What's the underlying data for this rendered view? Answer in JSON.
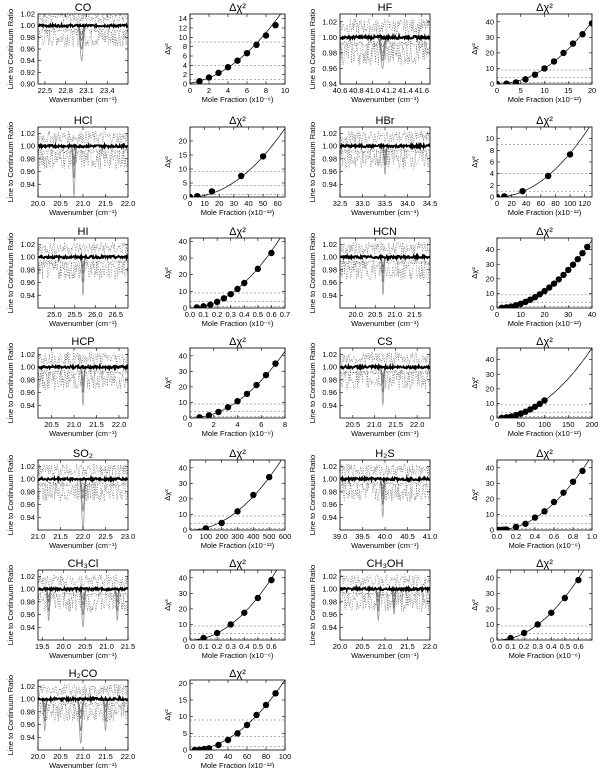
{
  "figure": {
    "spectrum_ylabel": "Line to Continuum Ratio",
    "spectrum_xlabel": "Wavenumber (cm⁻¹)",
    "chi_title": "Δχ²",
    "chi_ylabel": "Δχ²"
  },
  "chart_data": [
    {
      "type": "line",
      "title": "CO",
      "xlim": [
        22.4,
        23.7
      ],
      "ylim": [
        0.9,
        1.02
      ],
      "xticks": [
        22.5,
        22.8,
        23.1,
        23.4
      ],
      "yticks": [
        0.9,
        0.92,
        0.94,
        0.96,
        0.98,
        1.0,
        1.02
      ],
      "lines": [
        {
          "x0": 23.03,
          "w": 0.03,
          "depths": [
            0.06,
            0.04,
            0.025,
            0.015
          ]
        }
      ]
    },
    {
      "type": "scatter",
      "title": "Δχ²",
      "xlabel": "Mole Fraction (x10⁻⁶)",
      "ylabel": "Δχ²",
      "xlim": [
        0,
        10
      ],
      "ylim": [
        0,
        15
      ],
      "xticks": [
        0,
        2,
        4,
        6,
        8,
        10
      ],
      "yticks": [
        0,
        2,
        4,
        6,
        8,
        10,
        12,
        14
      ],
      "x": [
        1,
        2,
        3,
        4,
        5,
        6,
        7,
        8,
        9
      ],
      "y": [
        0.6,
        1.4,
        2.4,
        3.6,
        5.0,
        6.6,
        8.4,
        10.4,
        12.6
      ],
      "curve": {
        "k": 0.13,
        "x0": -1.2
      }
    },
    {
      "type": "line",
      "title": "HF",
      "xlim": [
        40.6,
        41.7
      ],
      "ylim": [
        0.94,
        1.03
      ],
      "xticks": [
        40.6,
        40.8,
        41.0,
        41.2,
        41.4,
        41.6
      ],
      "yticks": [
        0.94,
        0.96,
        0.98,
        1.0,
        1.02
      ],
      "lines": [
        {
          "x0": 41.12,
          "w": 0.03,
          "depths": [
            0.04,
            0.03,
            0.02,
            0.012
          ]
        }
      ]
    },
    {
      "type": "scatter",
      "title": "Δχ²",
      "xlabel": "Mole Fraction (x10⁻¹²)",
      "ylabel": "Δχ²",
      "xlim": [
        0,
        20
      ],
      "ylim": [
        0,
        45
      ],
      "xticks": [
        0,
        5,
        10,
        15,
        20
      ],
      "yticks": [
        0,
        10,
        20,
        30,
        40
      ],
      "x": [
        0,
        2,
        4,
        6,
        8,
        10,
        12,
        14,
        16,
        18,
        20
      ],
      "y": [
        0,
        0.2,
        1,
        3,
        6,
        10,
        14.5,
        20,
        26,
        32,
        39
      ],
      "curve": {
        "k": 0.1,
        "x0": 0
      }
    },
    {
      "type": "line",
      "title": "HCl",
      "xlim": [
        20,
        22
      ],
      "ylim": [
        0.92,
        1.03
      ],
      "xticks": [
        20.0,
        20.5,
        21.0,
        21.5,
        22.0
      ],
      "yticks": [
        0.94,
        0.96,
        0.98,
        1.0,
        1.02
      ],
      "lines": [
        {
          "x0": 20.8,
          "w": 0.03,
          "depths": [
            0.08,
            0.05,
            0.03,
            0.02
          ]
        }
      ]
    },
    {
      "type": "scatter",
      "title": "Δχ²",
      "xlabel": "Mole Fraction (x10⁻¹²)",
      "ylabel": "Δχ²",
      "xlim": [
        0,
        65
      ],
      "ylim": [
        0,
        25
      ],
      "xticks": [
        0,
        10,
        20,
        30,
        40,
        50,
        60
      ],
      "yticks": [
        0,
        5,
        10,
        15,
        20
      ],
      "x": [
        0,
        5,
        15,
        35,
        50
      ],
      "y": [
        0,
        0.3,
        2,
        7.5,
        14.5
      ],
      "curve": {
        "k": 0.0058,
        "x0": 0
      }
    },
    {
      "type": "line",
      "title": "HBr",
      "xlim": [
        32.5,
        34.5
      ],
      "ylim": [
        0.92,
        1.03
      ],
      "xticks": [
        32.5,
        33.0,
        33.5,
        34.0,
        34.5
      ],
      "yticks": [
        0.94,
        0.96,
        0.98,
        1.0,
        1.02
      ],
      "lines": [
        {
          "x0": 33.5,
          "w": 0.03,
          "depths": [
            0.045,
            0.03,
            0.02,
            0.01
          ]
        }
      ]
    },
    {
      "type": "scatter",
      "title": "Δχ²",
      "xlabel": "Mole Fraction (x10⁻¹²)",
      "ylabel": "Δχ²",
      "xlim": [
        0,
        130
      ],
      "ylim": [
        0,
        12
      ],
      "xticks": [
        0,
        20,
        40,
        60,
        80,
        100,
        120
      ],
      "yticks": [
        0,
        2,
        4,
        6,
        8,
        10
      ],
      "x": [
        0,
        10,
        35,
        70,
        100
      ],
      "y": [
        0,
        0.1,
        1,
        3.6,
        7.3
      ],
      "curve": {
        "k": 0.00075,
        "x0": 0
      }
    },
    {
      "type": "line",
      "title": "HI",
      "xlim": [
        24.6,
        26.8
      ],
      "ylim": [
        0.92,
        1.03
      ],
      "xticks": [
        25.0,
        25.5,
        26.0,
        26.5
      ],
      "yticks": [
        0.94,
        0.96,
        0.98,
        1.0,
        1.02
      ],
      "lines": [
        {
          "x0": 25.7,
          "w": 0.03,
          "depths": [
            0.06,
            0.04,
            0.025,
            0.015
          ]
        }
      ]
    },
    {
      "type": "scatter",
      "title": "Δχ²",
      "xlabel": "Mole Fraction (x10⁻⁶)",
      "ylabel": "Δχ²",
      "xlim": [
        0,
        0.7
      ],
      "ylim": [
        0,
        42
      ],
      "xticks": [
        0.0,
        0.1,
        0.2,
        0.3,
        0.4,
        0.5,
        0.6,
        0.7
      ],
      "yticks": [
        0,
        10,
        20,
        30,
        40
      ],
      "x": [
        0.05,
        0.1,
        0.15,
        0.2,
        0.25,
        0.3,
        0.35,
        0.4,
        0.5,
        0.6
      ],
      "y": [
        0.3,
        1,
        2,
        3.7,
        5.8,
        8.3,
        11.4,
        15,
        23.5,
        33
      ],
      "curve": {
        "k": 95,
        "x0": 0
      }
    },
    {
      "type": "line",
      "title": "HCN",
      "xlim": [
        19.6,
        21.9
      ],
      "ylim": [
        0.92,
        1.03
      ],
      "xticks": [
        20.0,
        20.5,
        21.0,
        21.5
      ],
      "yticks": [
        0.94,
        0.96,
        0.98,
        1.0,
        1.02
      ],
      "lines": [
        {
          "x0": 20.7,
          "w": 0.03,
          "depths": [
            0.06,
            0.04,
            0.025,
            0.015
          ]
        }
      ]
    },
    {
      "type": "scatter",
      "title": "Δχ²",
      "xlabel": "Mole Fraction (x10⁻¹²)",
      "ylabel": "Δχ²",
      "xlim": [
        0,
        40
      ],
      "ylim": [
        0,
        48
      ],
      "xticks": [
        0,
        10,
        20,
        30,
        40
      ],
      "yticks": [
        0,
        10,
        20,
        30,
        40
      ],
      "x": [
        2,
        4,
        6,
        8,
        10,
        12,
        14,
        16,
        18,
        20,
        22,
        24,
        26,
        28,
        30,
        32,
        34,
        36,
        38
      ],
      "y": [
        0.1,
        0.5,
        1,
        1.8,
        2.9,
        4.2,
        5.7,
        7.4,
        9.4,
        11.6,
        14,
        16.7,
        19.6,
        22.7,
        26.1,
        29.7,
        33.5,
        37.6,
        41.9
      ],
      "curve": {
        "k": 0.029,
        "x0": 0
      }
    },
    {
      "type": "line",
      "title": "HCP",
      "xlim": [
        20.2,
        22.2
      ],
      "ylim": [
        0.92,
        1.03
      ],
      "xticks": [
        20.5,
        21.0,
        21.5,
        22.0
      ],
      "yticks": [
        0.94,
        0.96,
        0.98,
        1.0,
        1.02
      ],
      "lines": [
        {
          "x0": 21.2,
          "w": 0.03,
          "depths": [
            0.06,
            0.04,
            0.03,
            0.02
          ]
        }
      ]
    },
    {
      "type": "scatter",
      "title": "Δχ²",
      "xlabel": "Mole Fraction (x10⁻⁶)",
      "ylabel": "Δχ²",
      "xlim": [
        0,
        8
      ],
      "ylim": [
        0,
        45
      ],
      "xticks": [
        0,
        2,
        4,
        6,
        8
      ],
      "yticks": [
        0,
        10,
        20,
        30,
        40
      ],
      "x": [
        0.8,
        1.6,
        2.4,
        3.2,
        4.0,
        4.8,
        5.6,
        6.4,
        7.2
      ],
      "y": [
        0.4,
        1.7,
        3.9,
        6.9,
        10.8,
        15.5,
        21.2,
        27.6,
        35
      ],
      "curve": {
        "k": 0.67,
        "x0": 0
      }
    },
    {
      "type": "line",
      "title": "CS",
      "xlim": [
        20.2,
        22.3
      ],
      "ylim": [
        0.92,
        1.03
      ],
      "xticks": [
        20.5,
        21.0,
        21.5,
        22.0
      ],
      "yticks": [
        0.94,
        0.96,
        0.98,
        1.0,
        1.02
      ],
      "lines": [
        {
          "x0": 21.2,
          "w": 0.03,
          "depths": [
            0.06,
            0.04,
            0.025,
            0.015
          ]
        }
      ]
    },
    {
      "type": "scatter",
      "title": "Δχ²",
      "xlabel": "Mole Fraction (x10⁻¹²)",
      "ylabel": "Δχ²",
      "xlim": [
        0,
        200
      ],
      "ylim": [
        0,
        48
      ],
      "xticks": [
        0,
        50,
        100,
        150,
        200
      ],
      "yticks": [
        0,
        10,
        20,
        30,
        40
      ],
      "x": [
        10,
        20,
        30,
        40,
        50,
        60,
        70,
        80,
        90,
        100
      ],
      "y": [
        0.1,
        0.5,
        1.1,
        1.9,
        3,
        4.3,
        5.9,
        7.7,
        9.7,
        12
      ],
      "curve": {
        "k": 0.0012,
        "x0": 0
      }
    },
    {
      "type": "line",
      "title": "SO₂",
      "xlim": [
        21.0,
        23.0
      ],
      "ylim": [
        0.92,
        1.03
      ],
      "xticks": [
        21.0,
        21.5,
        22.0,
        22.5,
        23.0
      ],
      "yticks": [
        0.94,
        0.96,
        0.98,
        1.0,
        1.02
      ],
      "lines": [
        {
          "x0": 22.0,
          "w": 0.04,
          "depths": [
            0.08,
            0.05,
            0.03,
            0.02
          ]
        }
      ]
    },
    {
      "type": "scatter",
      "title": "Δχ²",
      "xlabel": "Mole Fraction (x10⁻¹²)",
      "ylabel": "Δχ²",
      "xlim": [
        0,
        600
      ],
      "ylim": [
        0,
        45
      ],
      "xticks": [
        0,
        100,
        200,
        300,
        400,
        500,
        600
      ],
      "yticks": [
        0,
        10,
        20,
        30,
        40
      ],
      "x": [
        100,
        200,
        300,
        400,
        500
      ],
      "y": [
        1,
        4.5,
        12,
        22.5,
        34
      ],
      "curve": {
        "k": 0.000135,
        "x0": 0
      }
    },
    {
      "type": "line",
      "title": "H₂S",
      "xlim": [
        39.0,
        41.0
      ],
      "ylim": [
        0.92,
        1.03
      ],
      "xticks": [
        39.0,
        39.5,
        40.0,
        40.5,
        41.0
      ],
      "yticks": [
        0.94,
        0.96,
        0.98,
        1.0,
        1.02
      ],
      "lines": [
        {
          "x0": 39.95,
          "w": 0.03,
          "depths": [
            0.06,
            0.04,
            0.025,
            0.015
          ]
        }
      ]
    },
    {
      "type": "scatter",
      "title": "Δχ²",
      "xlabel": "Mole Fraction (x10⁻⁶)",
      "ylabel": "Δχ²",
      "xlim": [
        0,
        1.0
      ],
      "ylim": [
        0,
        45
      ],
      "xticks": [
        0.0,
        0.2,
        0.4,
        0.6,
        0.8,
        1.0
      ],
      "yticks": [
        0,
        10,
        20,
        30,
        40
      ],
      "x": [
        0.02,
        0.04,
        0.06,
        0.08,
        0.1,
        0.2,
        0.3,
        0.4,
        0.5,
        0.6,
        0.7,
        0.8,
        0.9
      ],
      "y": [
        0,
        0,
        0.1,
        0.2,
        0.3,
        2,
        4,
        8,
        12,
        18,
        24,
        31,
        38
      ],
      "curve": {
        "k": 48,
        "x0": 0
      }
    },
    {
      "type": "line",
      "title": "CH₃Cl",
      "xlim": [
        19.4,
        21.5
      ],
      "ylim": [
        0.92,
        1.03
      ],
      "xticks": [
        19.5,
        20.0,
        20.5,
        21.0,
        21.5
      ],
      "yticks": [
        0.94,
        0.96,
        0.98,
        1.0,
        1.02
      ],
      "lines": [
        {
          "x0": 19.65,
          "w": 0.03,
          "depths": [
            0.05,
            0.035,
            0.02,
            0.012
          ]
        },
        {
          "x0": 20.45,
          "w": 0.04,
          "depths": [
            0.06,
            0.04,
            0.025,
            0.015
          ]
        },
        {
          "x0": 21.25,
          "w": 0.03,
          "depths": [
            0.05,
            0.035,
            0.02,
            0.012
          ]
        }
      ]
    },
    {
      "type": "scatter",
      "title": "Δχ²",
      "xlabel": "Mole Fraction (x10⁻⁶)",
      "ylabel": "Δχ²",
      "xlim": [
        0,
        0.7
      ],
      "ylim": [
        0,
        45
      ],
      "xticks": [
        0.0,
        0.1,
        0.2,
        0.3,
        0.4,
        0.5,
        0.6
      ],
      "yticks": [
        0,
        10,
        20,
        30,
        40
      ],
      "x": [
        0.1,
        0.2,
        0.3,
        0.4,
        0.5,
        0.6
      ],
      "y": [
        1.2,
        4.5,
        10,
        17.5,
        27,
        38.5
      ],
      "curve": {
        "k": 110,
        "x0": 0
      }
    },
    {
      "type": "line",
      "title": "CH₃OH",
      "xlim": [
        20.0,
        22.0
      ],
      "ylim": [
        0.92,
        1.03
      ],
      "xticks": [
        20.0,
        20.5,
        21.0,
        21.5,
        22.0
      ],
      "yticks": [
        0.94,
        0.96,
        0.98,
        1.0,
        1.02
      ],
      "lines": [
        {
          "x0": 20.85,
          "w": 0.03,
          "depths": [
            0.05,
            0.035,
            0.02,
            0.012
          ]
        },
        {
          "x0": 21.2,
          "w": 0.03,
          "depths": [
            0.04,
            0.03,
            0.02,
            0.01
          ]
        }
      ]
    },
    {
      "type": "scatter",
      "title": "Δχ²",
      "xlabel": "Mole Fraction (x10⁻⁶)",
      "ylabel": "Δχ²",
      "xlim": [
        0,
        0.7
      ],
      "ylim": [
        0,
        45
      ],
      "xticks": [
        0.0,
        0.1,
        0.2,
        0.3,
        0.4,
        0.5,
        0.6
      ],
      "yticks": [
        0,
        10,
        20,
        30,
        40
      ],
      "x": [
        0.1,
        0.2,
        0.3,
        0.4,
        0.5,
        0.6
      ],
      "y": [
        1.2,
        4.5,
        10,
        17.5,
        27,
        38.5
      ],
      "curve": {
        "k": 110,
        "x0": 0
      }
    },
    {
      "type": "line",
      "title": "H₂CO",
      "xlim": [
        20.0,
        22.0
      ],
      "ylim": [
        0.92,
        1.03
      ],
      "xticks": [
        20.0,
        20.5,
        21.0,
        21.5,
        22.0
      ],
      "yticks": [
        0.94,
        0.96,
        0.98,
        1.0,
        1.02
      ],
      "lines": [
        {
          "x0": 20.15,
          "w": 0.03,
          "depths": [
            0.05,
            0.035,
            0.02,
            0.012
          ]
        },
        {
          "x0": 20.95,
          "w": 0.04,
          "depths": [
            0.07,
            0.05,
            0.03,
            0.02
          ]
        },
        {
          "x0": 21.5,
          "w": 0.03,
          "depths": [
            0.05,
            0.035,
            0.02,
            0.012
          ]
        }
      ]
    },
    {
      "type": "scatter",
      "title": "Δχ²",
      "xlabel": "Mole Fraction (x10⁻¹²)",
      "ylabel": "Δχ²",
      "xlim": [
        0,
        100
      ],
      "ylim": [
        0,
        21
      ],
      "xticks": [
        0,
        20,
        40,
        60,
        80,
        100
      ],
      "yticks": [
        0,
        5,
        10,
        15,
        20
      ],
      "x": [
        5,
        10,
        15,
        20,
        30,
        40,
        50,
        60,
        70,
        80,
        90
      ],
      "y": [
        0,
        0.1,
        0.3,
        0.5,
        1.5,
        3,
        5,
        7.5,
        10.5,
        13.5,
        17
      ],
      "curve": {
        "k": 0.0021,
        "x0": 0
      }
    }
  ]
}
